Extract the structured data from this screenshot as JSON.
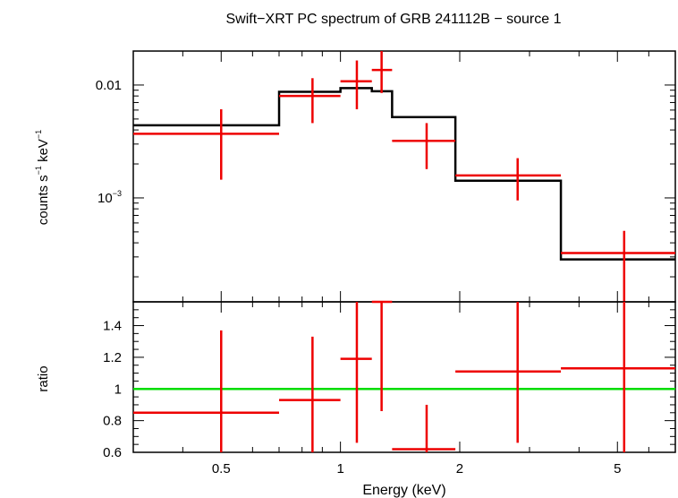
{
  "chart_data": {
    "type": "scatter",
    "title": "Swift−XRT PC spectrum of GRB 241112B − source 1",
    "xlabel": "Energy (keV)",
    "x_scale": "log",
    "xlim": [
      0.3,
      7.0
    ],
    "x_ticks": [
      {
        "value": 0.5,
        "label": "0.5"
      },
      {
        "value": 1,
        "label": "1"
      },
      {
        "value": 2,
        "label": "2"
      },
      {
        "value": 5,
        "label": "5"
      }
    ],
    "panels": [
      {
        "name": "spectrum",
        "ylabel_main": "counts s",
        "ylabel_exp1": "−1",
        "ylabel_mid": " keV",
        "ylabel_exp2": "−1",
        "y_scale": "log",
        "ylim": [
          0.00012,
          0.02
        ],
        "y_ticks": [
          {
            "value": 0.01,
            "label": "0.01",
            "sup": ""
          },
          {
            "value": 0.001,
            "label": "10",
            "sup": "−3"
          }
        ],
        "data": [
          {
            "xlo": 0.3,
            "xhi": 0.7,
            "x": 0.5,
            "y": 0.0037,
            "ylo": 0.00145,
            "yhi": 0.0061
          },
          {
            "xlo": 0.7,
            "xhi": 1.0,
            "x": 0.85,
            "y": 0.008,
            "ylo": 0.0046,
            "yhi": 0.0115
          },
          {
            "xlo": 1.0,
            "xhi": 1.2,
            "x": 1.1,
            "y": 0.0108,
            "ylo": 0.0061,
            "yhi": 0.0165
          },
          {
            "xlo": 1.2,
            "xhi": 1.35,
            "x": 1.27,
            "y": 0.0136,
            "ylo": 0.0085,
            "yhi": 0.02
          },
          {
            "xlo": 1.35,
            "xhi": 1.95,
            "x": 1.65,
            "y": 0.0032,
            "ylo": 0.0018,
            "yhi": 0.0046
          },
          {
            "xlo": 1.95,
            "xhi": 3.6,
            "x": 2.8,
            "y": 0.00158,
            "ylo": 0.00095,
            "yhi": 0.00225
          },
          {
            "xlo": 3.6,
            "xhi": 7.0,
            "x": 5.2,
            "y": 0.000325,
            "ylo": 0.00012,
            "yhi": 0.00051
          }
        ],
        "model": [
          {
            "xlo": 0.3,
            "xhi": 0.7,
            "y": 0.0044
          },
          {
            "xlo": 0.7,
            "xhi": 1.0,
            "y": 0.0087
          },
          {
            "xlo": 1.0,
            "xhi": 1.2,
            "y": 0.0094
          },
          {
            "xlo": 1.2,
            "xhi": 1.35,
            "y": 0.0088
          },
          {
            "xlo": 1.35,
            "xhi": 1.95,
            "y": 0.0052
          },
          {
            "xlo": 1.95,
            "xhi": 3.6,
            "y": 0.00142
          },
          {
            "xlo": 3.6,
            "xhi": 7.0,
            "y": 0.000285
          }
        ]
      },
      {
        "name": "ratio",
        "ylabel": "ratio",
        "y_scale": "linear",
        "ylim": [
          0.6,
          1.55
        ],
        "y_ticks": [
          {
            "value": 0.6,
            "label": "0.6"
          },
          {
            "value": 0.8,
            "label": "0.8"
          },
          {
            "value": 1,
            "label": "1"
          },
          {
            "value": 1.2,
            "label": "1.2"
          },
          {
            "value": 1.4,
            "label": "1.4"
          }
        ],
        "reference_line": 1.0,
        "data": [
          {
            "xlo": 0.3,
            "xhi": 0.7,
            "x": 0.5,
            "y": 0.85,
            "ylo": 0.6,
            "yhi": 1.37
          },
          {
            "xlo": 0.7,
            "xhi": 1.0,
            "x": 0.85,
            "y": 0.93,
            "ylo": 0.6,
            "yhi": 1.33
          },
          {
            "xlo": 1.0,
            "xhi": 1.2,
            "x": 1.1,
            "y": 1.19,
            "ylo": 0.66,
            "yhi": 1.55
          },
          {
            "xlo": 1.2,
            "xhi": 1.35,
            "x": 1.27,
            "y": 1.55,
            "ylo": 0.86,
            "yhi": 1.55
          },
          {
            "xlo": 1.35,
            "xhi": 1.95,
            "x": 1.65,
            "y": 0.62,
            "ylo": 0.6,
            "yhi": 0.9
          },
          {
            "xlo": 1.95,
            "xhi": 3.6,
            "x": 2.8,
            "y": 1.11,
            "ylo": 0.66,
            "yhi": 1.55
          },
          {
            "xlo": 3.6,
            "xhi": 7.0,
            "x": 5.2,
            "y": 1.13,
            "ylo": 0.6,
            "yhi": 1.55
          }
        ]
      }
    ],
    "colors": {
      "data": "#ee0000",
      "model": "#000000",
      "reference": "#00dd00",
      "axes": "#000000"
    }
  }
}
